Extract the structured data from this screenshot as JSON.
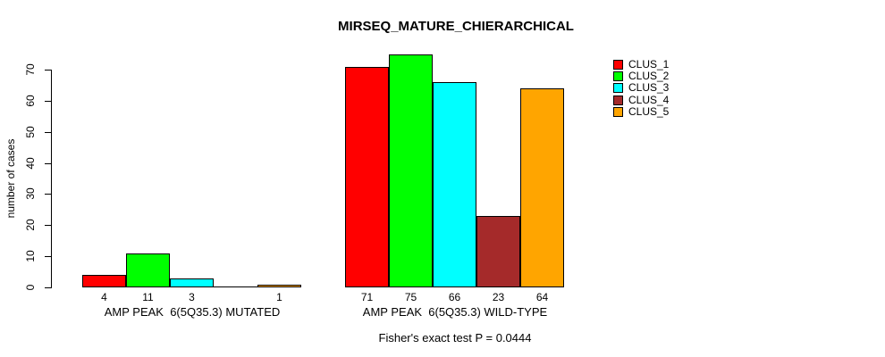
{
  "page": {
    "background_color": "#FFFFFF",
    "text_color": "#000000"
  },
  "chart_data": {
    "type": "bar",
    "title": "MIRSEQ_MATURE_CHIERARCHICAL",
    "xlabel": "",
    "ylabel": "number of cases",
    "ylim": [
      0,
      70
    ],
    "yticks": [
      0,
      10,
      20,
      30,
      40,
      50,
      60,
      70
    ],
    "grid": false,
    "legend_position": "top-right",
    "series": [
      {
        "name": "CLUS_1",
        "color": "#FF0000",
        "values": [
          4,
          71
        ]
      },
      {
        "name": "CLUS_2",
        "color": "#00FF00",
        "values": [
          11,
          75
        ]
      },
      {
        "name": "CLUS_3",
        "color": "#00FFFF",
        "values": [
          3,
          66
        ]
      },
      {
        "name": "CLUS_4",
        "color": "#A52A2A",
        "values": [
          0,
          23
        ]
      },
      {
        "name": "CLUS_5",
        "color": "#FFA500",
        "values": [
          1,
          64
        ]
      }
    ],
    "groups": [
      {
        "label": "AMP PEAK  6(5Q35.3) MUTATED",
        "bar_labels": [
          "4",
          "11",
          "3",
          "",
          "1"
        ]
      },
      {
        "label": "AMP PEAK  6(5Q35.3) WILD-TYPE",
        "bar_labels": [
          "71",
          "75",
          "66",
          "23",
          "64"
        ]
      }
    ],
    "annotation": "Fisher's exact test P = 0.0444"
  }
}
